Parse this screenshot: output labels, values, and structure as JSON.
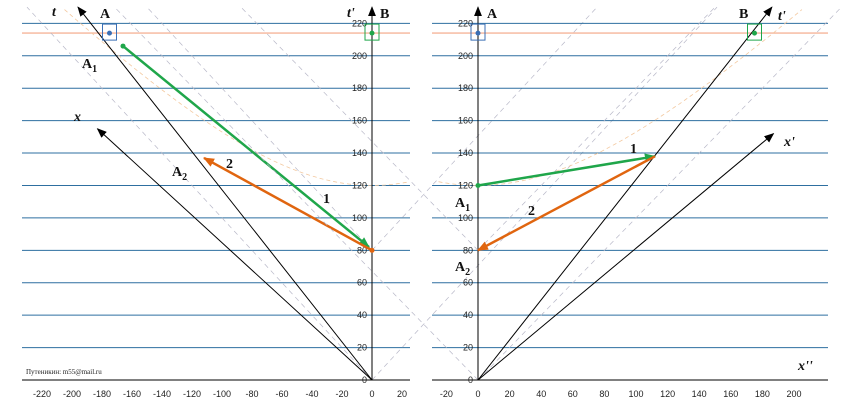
{
  "colors": {
    "grid": "#2e6fa0",
    "axis": "#000000",
    "green": "#1fa64a",
    "orange": "#e0650f",
    "a_box": "#3b6fb5",
    "b_box": "#1fa64a",
    "highlight": "#f5b59a",
    "cone": "#b8b8c8",
    "hyperbola": "#f3c9a0"
  },
  "credit": "Путеникин: m55@mail.ru",
  "left_panel": {
    "axis_labels": {
      "t": "t",
      "t_prime": "t'",
      "x": "x"
    },
    "point_labels": {
      "A": "A",
      "B": "B",
      "A1": "A",
      "A1_sub": "1",
      "A2": "A",
      "A2_sub": "2"
    },
    "arrow_numbers": {
      "green": "1",
      "orange": "2"
    },
    "x_ticks": [
      "-220",
      "-200",
      "-180",
      "-160",
      "-140",
      "-120",
      "-100",
      "-80",
      "-60",
      "-40",
      "-20",
      "0",
      "20"
    ],
    "y_ticks": [
      "0",
      "20",
      "40",
      "60",
      "80",
      "100",
      "120",
      "140",
      "160",
      "180",
      "200",
      "220"
    ]
  },
  "right_panel": {
    "axis_labels": {
      "t_prime": "t'",
      "x_prime": "x'",
      "x_double_prime": "x''"
    },
    "point_labels": {
      "A": "A",
      "B": "B",
      "A1": "A",
      "A1_sub": "1",
      "A2": "A",
      "A2_sub": "2"
    },
    "arrow_numbers": {
      "green": "1",
      "orange": "2"
    },
    "x_ticks": [
      "-20",
      "0",
      "20",
      "40",
      "60",
      "80",
      "100",
      "120",
      "140",
      "160",
      "180",
      "200"
    ],
    "y_ticks": [
      "0",
      "20",
      "40",
      "60",
      "80",
      "100",
      "120",
      "140",
      "160",
      "180",
      "200",
      "220"
    ]
  },
  "chart_data": [
    {
      "type": "spacetime-diagram",
      "xlim": [
        -225,
        25
      ],
      "ylim": [
        0,
        230
      ],
      "x_ticks": [
        -220,
        -200,
        -180,
        -160,
        -140,
        -120,
        -100,
        -80,
        -60,
        -40,
        -20,
        0,
        20
      ],
      "y_ticks": [
        0,
        20,
        40,
        60,
        80,
        100,
        120,
        140,
        160,
        180,
        200,
        220
      ],
      "points": {
        "A": [
          -175,
          214
        ],
        "B": [
          0,
          214
        ],
        "A1": [
          -166,
          206
        ],
        "A2": [
          -112,
          137
        ],
        "orange_start": [
          0,
          80
        ],
        "green_end": [
          -2,
          82
        ]
      },
      "arrows": [
        {
          "name": "1",
          "color": "green",
          "from": [
            -166,
            206
          ],
          "to": [
            -2,
            82
          ]
        },
        {
          "name": "2",
          "color": "orange",
          "from": [
            0,
            80
          ],
          "to": [
            -112,
            137
          ]
        }
      ],
      "axes": {
        "t": {
          "from": [
            0,
            0
          ],
          "to": [
            -196,
            230
          ]
        },
        "x": {
          "from": [
            0,
            0
          ],
          "to": [
            -183,
            155
          ]
        },
        "t_prime": {
          "from": [
            0,
            0
          ],
          "to": [
            0,
            230
          ]
        }
      }
    },
    {
      "type": "spacetime-diagram",
      "xlim": [
        -25,
        215
      ],
      "ylim": [
        0,
        230
      ],
      "x_ticks": [
        -20,
        0,
        20,
        40,
        60,
        80,
        100,
        120,
        140,
        160,
        180,
        200
      ],
      "y_ticks": [
        0,
        20,
        40,
        60,
        80,
        100,
        120,
        140,
        160,
        180,
        200,
        220
      ],
      "points": {
        "A": [
          0,
          214
        ],
        "B": [
          175,
          214
        ],
        "A1": [
          0,
          120
        ],
        "A2": [
          0,
          80
        ],
        "cross": [
          112,
          138
        ]
      },
      "arrows": [
        {
          "name": "1",
          "color": "green",
          "from": [
            0,
            120
          ],
          "to": [
            112,
            138
          ]
        },
        {
          "name": "2",
          "color": "orange",
          "from": [
            112,
            138
          ],
          "to": [
            0,
            80
          ]
        }
      ],
      "axes": {
        "t_prime": {
          "from": [
            0,
            0
          ],
          "to": [
            186,
            230
          ]
        },
        "x_prime": {
          "from": [
            0,
            0
          ],
          "to": [
            187,
            152
          ]
        },
        "t": {
          "from": [
            0,
            0
          ],
          "to": [
            0,
            230
          ]
        }
      }
    }
  ]
}
